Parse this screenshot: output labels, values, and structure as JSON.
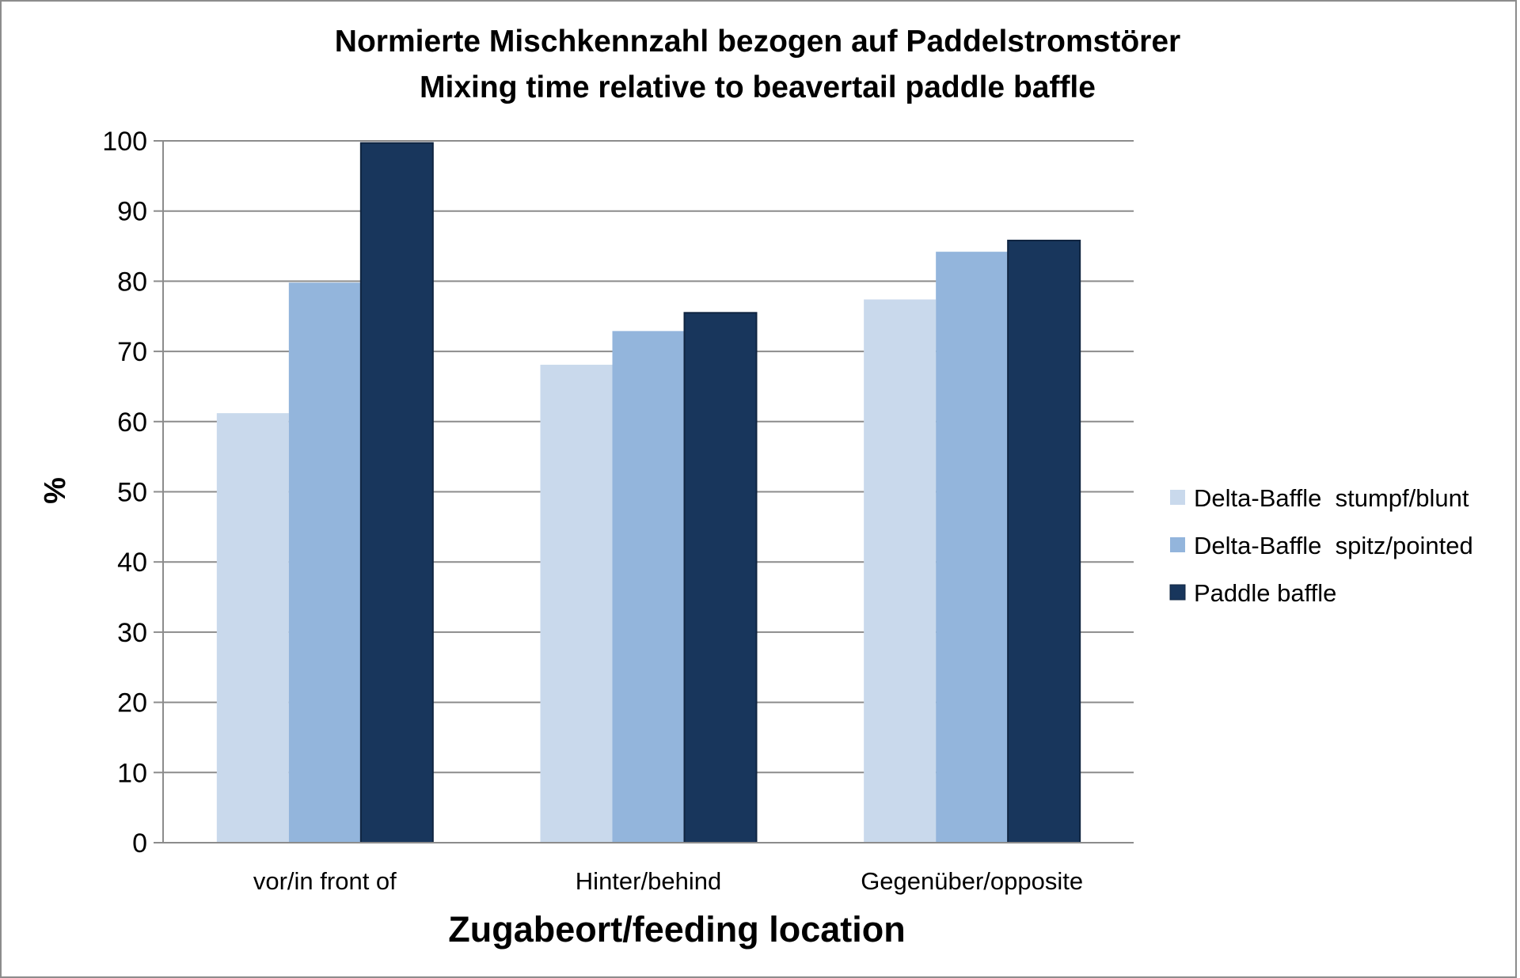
{
  "chart_data": {
    "type": "bar",
    "title_line1": "Normierte Mischkennzahl bezogen auf Paddelstromstörer",
    "title_line2": "Mixing time relative to beavertail paddle baffle",
    "xlabel": "Zugabeort/feeding location",
    "ylabel": "%",
    "ylim": [
      0,
      100
    ],
    "yticks": [
      "0",
      "10",
      "20",
      "30",
      "40",
      "50",
      "60",
      "70",
      "80",
      "90",
      "100"
    ],
    "grid": true,
    "legend_position": "right",
    "categories": [
      "vor/in front of",
      "Hinter/behind",
      "Gegenüber/opposite"
    ],
    "series": [
      {
        "name": "Delta-Baffle  stumpf/blunt",
        "color": "#c9d9ec",
        "values": [
          61.2,
          68.1,
          77.4
        ]
      },
      {
        "name": "Delta-Baffle  spitz/pointed",
        "color": "#93b5dc",
        "values": [
          79.8,
          72.9,
          84.2
        ]
      },
      {
        "name": "Paddle baffle",
        "color": "#18365c",
        "values": [
          99.7,
          75.5,
          85.8
        ]
      }
    ]
  }
}
